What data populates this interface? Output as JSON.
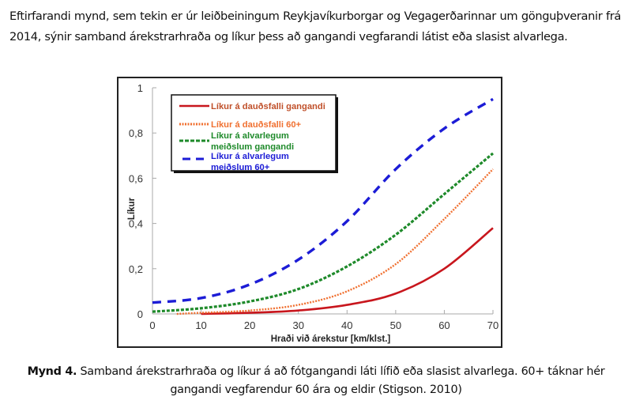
{
  "paragraph": {
    "text": "Eftirfarandi mynd, sem tekin er úr leiðbeiningum Reykjavíkurborgar og Vegagerðarinnar um gönguþveranir frá 2014, sýnir samband árekstrarhraða og líkur þess að gangandi vegfarandi látist eða slasist alvarlega."
  },
  "caption": {
    "label": "Mynd 4.",
    "text": " Samband árekstrarhraða og líkur á að fótgangandi láti lífið eða slasist alvarlega. 60+ táknar hér gangandi vegfarendur 60 ára og eldir (Stigson. 2010)"
  },
  "chart_data": {
    "type": "line",
    "title": "",
    "xlabel": "Hraði við árekstur [km/klst.]",
    "ylabel": "Líkur",
    "xlim": [
      0,
      70
    ],
    "ylim": [
      0,
      1
    ],
    "xticks": [
      "0",
      "10",
      "20",
      "30",
      "40",
      "50",
      "60",
      "70"
    ],
    "yticks": [
      "0",
      "0,2",
      "0,4",
      "0,6",
      "0,8",
      "1"
    ],
    "grid": false,
    "legend_position": "upper left",
    "series": [
      {
        "name": "Líkur á dauðsfalli gangandi",
        "color": "#c8161d",
        "style": "solid",
        "x": [
          10,
          20,
          30,
          40,
          50,
          60,
          70
        ],
        "values": [
          0.0,
          0.005,
          0.015,
          0.04,
          0.09,
          0.2,
          0.38
        ]
      },
      {
        "name": "Líkur á dauðsfalli 60+",
        "color": "#f07030",
        "style": "dotted",
        "x": [
          5,
          10,
          20,
          30,
          40,
          50,
          60,
          70
        ],
        "values": [
          0.0,
          0.005,
          0.015,
          0.04,
          0.1,
          0.22,
          0.42,
          0.64
        ]
      },
      {
        "name": "Líkur á alvarlegum meiðslum gangandi",
        "color": "#1e8a2a",
        "style": "short-dash",
        "x": [
          0,
          10,
          20,
          30,
          40,
          50,
          60,
          70
        ],
        "values": [
          0.01,
          0.025,
          0.055,
          0.11,
          0.21,
          0.35,
          0.53,
          0.71
        ]
      },
      {
        "name": "Líkur á alvarlegum meiðslum 60+",
        "color": "#1c1cd6",
        "style": "long-dash",
        "x": [
          0,
          10,
          20,
          30,
          40,
          50,
          60,
          70
        ],
        "values": [
          0.05,
          0.07,
          0.13,
          0.24,
          0.41,
          0.64,
          0.82,
          0.95
        ]
      }
    ],
    "legend": [
      {
        "line1": "Líkur á dauðsfalli gangandi",
        "line2": "",
        "color": "#c0502a",
        "stroke": "#c8161d",
        "dash": ""
      },
      {
        "line1": "Líkur á dauðsfalli 60+",
        "line2": "",
        "color": "#f07030",
        "stroke": "#f07030",
        "dash": "2,1.5"
      },
      {
        "line1": "Líkur á alvarlegum",
        "line2": "meiðslum gangandi",
        "color": "#1e8a2a",
        "stroke": "#1e8a2a",
        "dash": "5,2"
      },
      {
        "line1": "Líkur á alvarlegum",
        "line2": "meiðslum 60+",
        "color": "#1c1cd6",
        "stroke": "#1c1cd6",
        "dash": "10,7"
      }
    ]
  }
}
